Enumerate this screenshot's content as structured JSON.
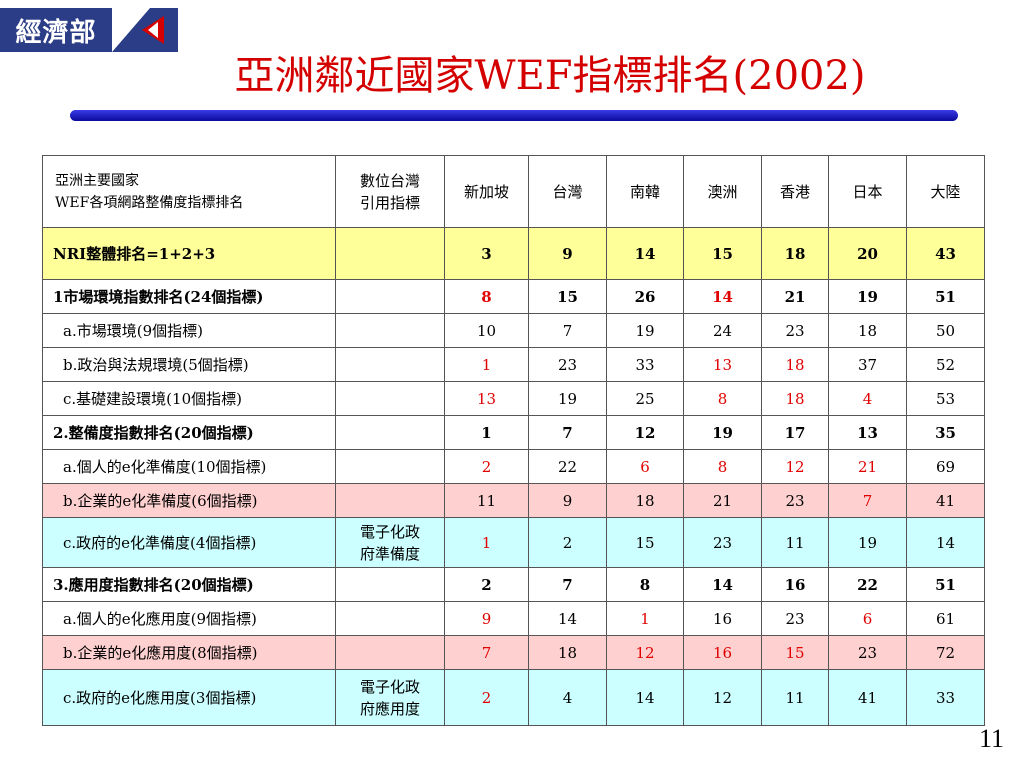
{
  "logo": {
    "text": "經濟部"
  },
  "title": "亞洲鄰近國家WEF指標排名(2002)",
  "table": {
    "header": {
      "label_line1": "亞洲主要國家",
      "label_line2": "WEF各項網路整備度指標排名",
      "note_line1": "數位台灣",
      "note_line2": "引用指標",
      "countries": [
        "新加坡",
        "台灣",
        "南韓",
        "澳洲",
        "香港",
        "日本",
        "大陸"
      ]
    },
    "rows": [
      {
        "label": "NRI整體排名=1+2+3",
        "note1": "",
        "note2": "",
        "style": "nri",
        "values": [
          "3",
          "9",
          "14",
          "15",
          "18",
          "20",
          "43"
        ],
        "red": []
      },
      {
        "label": "1市場環境指數排名(24個指標)",
        "note1": "",
        "note2": "",
        "style": "bold",
        "values": [
          "8",
          "15",
          "26",
          "14",
          "21",
          "19",
          "51"
        ],
        "red": [
          0,
          3
        ]
      },
      {
        "label": "a.市場環境(9個指標)",
        "note1": "",
        "note2": "",
        "style": "indent",
        "values": [
          "10",
          "7",
          "19",
          "24",
          "23",
          "18",
          "50"
        ],
        "red": []
      },
      {
        "label": "b.政治與法規環境(5個指標)",
        "note1": "",
        "note2": "",
        "style": "indent",
        "values": [
          "1",
          "23",
          "33",
          "13",
          "18",
          "37",
          "52"
        ],
        "red": [
          0,
          3,
          4
        ]
      },
      {
        "label": "c.基礎建設環境(10個指標)",
        "note1": "",
        "note2": "",
        "style": "indent",
        "values": [
          "13",
          "19",
          "25",
          "8",
          "18",
          "4",
          "53"
        ],
        "red": [
          0,
          3,
          4,
          5
        ]
      },
      {
        "label": "2.整備度指數排名(20個指標)",
        "note1": "",
        "note2": "",
        "style": "bold",
        "values": [
          "1",
          "7",
          "12",
          "19",
          "17",
          "13",
          "35"
        ],
        "red": []
      },
      {
        "label": "a.個人的e化準備度(10個指標)",
        "note1": "",
        "note2": "",
        "style": "indent",
        "values": [
          "2",
          "22",
          "6",
          "8",
          "12",
          "21",
          "69"
        ],
        "red": [
          0,
          2,
          3,
          4,
          5
        ]
      },
      {
        "label": "b.企業的e化準備度(6個指標)",
        "note1": "",
        "note2": "",
        "style": "indent pink",
        "values": [
          "11",
          "9",
          "18",
          "21",
          "23",
          "7",
          "41"
        ],
        "red": [
          5
        ]
      },
      {
        "label": "c.政府的e化準備度(4個指標)",
        "note1": "電子化政",
        "note2": "府準備度",
        "style": "indent cyan",
        "values": [
          "1",
          "2",
          "15",
          "23",
          "11",
          "19",
          "14"
        ],
        "red": [
          0
        ]
      },
      {
        "label": "3.應用度指數排名(20個指標)",
        "note1": "",
        "note2": "",
        "style": "bold",
        "values": [
          "2",
          "7",
          "8",
          "14",
          "16",
          "22",
          "51"
        ],
        "red": []
      },
      {
        "label": "a.個人的e化應用度(9個指標)",
        "note1": "",
        "note2": "",
        "style": "indent",
        "values": [
          "9",
          "14",
          "1",
          "16",
          "23",
          "6",
          "61"
        ],
        "red": [
          0,
          2,
          5
        ]
      },
      {
        "label": "b.企業的e化應用度(8個指標)",
        "note1": "",
        "note2": "",
        "style": "indent pink",
        "values": [
          "7",
          "18",
          "12",
          "16",
          "15",
          "23",
          "72"
        ],
        "red": [
          0,
          2,
          3,
          4
        ]
      },
      {
        "label": "c.政府的e化應用度(3個指標)",
        "note1": "電子化政",
        "note2": "府應用度",
        "style": "indent cyan",
        "values": [
          "2",
          "4",
          "14",
          "12",
          "11",
          "41",
          "33"
        ],
        "red": [
          0
        ]
      }
    ]
  },
  "page_number": "11",
  "colors": {
    "title": "#d40000",
    "accent": "#2b3d86",
    "highlight_red": "#e00000"
  }
}
